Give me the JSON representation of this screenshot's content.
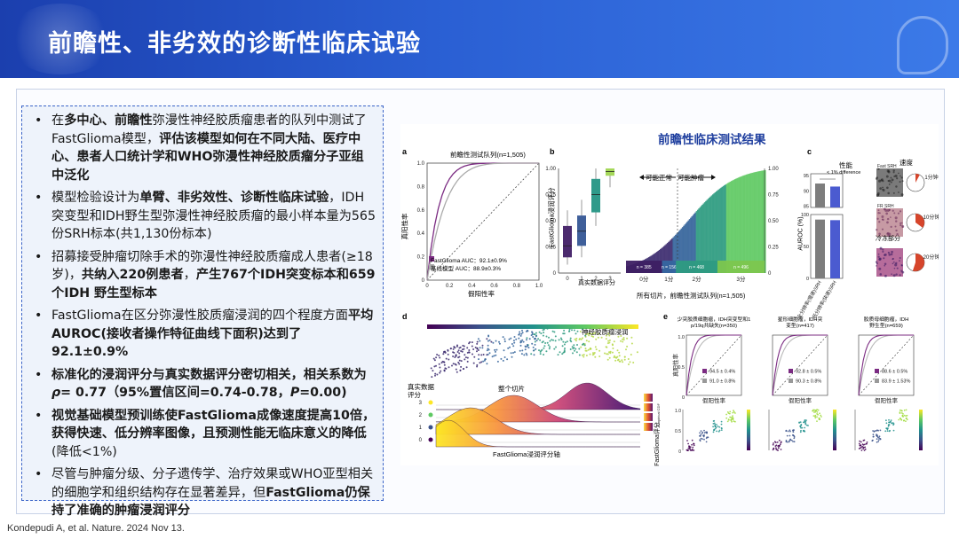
{
  "slide": {
    "title": "前瞻性、非劣效的诊断性临床试验",
    "citation": "Kondepudi A, et al. Nature. 2024 Nov 13."
  },
  "bullets": [
    [
      {
        "t": "在"
      },
      {
        "t": "多中心、前瞻性",
        "b": true
      },
      {
        "t": "弥漫性神经胶质瘤患者的队列中测试了FastGlioma模型，"
      },
      {
        "t": "评估该模型如何在不同大陆、医疗中心、患者人口统计学和WHO弥漫性神经胶质瘤分子亚组中泛化",
        "b": true
      }
    ],
    [
      {
        "t": "模型检验设计为"
      },
      {
        "t": "单臂、非劣效性、诊断性临床试验",
        "b": true
      },
      {
        "t": "，IDH突变型和IDH野生型弥漫性神经胶质瘤的最小样本量为565份SRH标本(共1,130份标本)"
      }
    ],
    [
      {
        "t": "招募接受肿瘤切除手术的弥漫性神经胶质瘤成人患者(≥18岁)，"
      },
      {
        "t": "共纳入220例患者",
        "b": true
      },
      {
        "t": "，"
      },
      {
        "t": "产生767个IDH突变标本和659个IDH 野生型标本",
        "b": true
      }
    ],
    [
      {
        "t": "FastGlioma在区分弥漫性胶质瘤浸润的四个程度方面"
      },
      {
        "t": "平均AUROC(接收者操作特征曲线下面积)达到了92.1±0.9%",
        "b": true
      }
    ],
    [
      {
        "t": "标准化的浸润评分与真实数据评分密切相关，相关系数为",
        "b": true
      },
      {
        "t": "ρ",
        "b": true,
        "i": true
      },
      {
        "t": "= 0.77（95%置信区间=0.74-0.78，",
        "b": true
      },
      {
        "t": "P",
        "b": true,
        "i": true
      },
      {
        "t": "=0.00)",
        "b": true
      }
    ],
    [
      {
        "t": "视觉基础模型预训练使FastGlioma成像速度提高10倍，获得快速、低分辨率图像，且预测性能无临床意义的降低",
        "b": true
      },
      {
        "t": "(降低<1%)"
      }
    ],
    [
      {
        "t": "尽管与肿瘤分级、分子遗传学、治疗效果或WHO亚型相关的细胞学和组织结构存在显著差异，但"
      },
      {
        "t": "FastGlioma仍保持了准确的肿瘤浸润评分",
        "b": true
      }
    ]
  ],
  "figure": {
    "main_title": "前瞻性临床测试结果",
    "panel_labels": {
      "a": "a",
      "b": "b",
      "c": "c",
      "d": "d",
      "e": "e"
    },
    "a": {
      "title": "前瞻性测试队列(n=1,505)",
      "ylabel": "真阳性率",
      "xlabel": "假阳性率",
      "legend1": "FastGlioma AUC：92.1±0.9%",
      "legend2": "基线模型 AUC：88.9±0.3%",
      "xticks": [
        "0",
        "0.2",
        "0.4",
        "0.6",
        "0.8",
        "1.0"
      ],
      "yticks": [
        "0",
        "0.2",
        "0.4",
        "0.6",
        "0.8",
        "1.0"
      ],
      "fast_color": "#7b2b82",
      "base_color": "#aaaaaa"
    },
    "b": {
      "ylabel": "FastGlioma浸润评分",
      "box_xlabel": "真实数据评分",
      "box_xticks": [
        "0",
        "1",
        "2",
        "3"
      ],
      "yticks": [
        "0",
        "0.25",
        "0.50",
        "0.75",
        "1.00"
      ],
      "arrow_left": "可能正常",
      "arrow_right": "可能肿瘤",
      "xlabel": "所有切片，前瞻性测试队列(n=1,505)",
      "band_ticks": [
        "0分",
        "1分",
        "2分",
        "3分"
      ],
      "band_counts": [
        "n = 385",
        "n = 156",
        "n = 468",
        "n = 496"
      ],
      "right_yticks": [
        "0",
        "0.25",
        "0.50",
        "0.75",
        "1.00"
      ]
    },
    "c": {
      "perf_title": "性能",
      "diff_label": "< 1% difference",
      "ylabel": "AUROC (%)",
      "yticks_top": [
        "95",
        "90",
        "85"
      ],
      "yticks_bottom": [
        "0",
        "50",
        "100"
      ],
      "bar_labels": [
        "全分辨率(慢速)SRH",
        "低分辨率(快速)SRH"
      ],
      "bar_values": [
        92.1,
        91.2
      ],
      "speed_title": "速度",
      "speed_rows": [
        {
          "label": "Fast SRH",
          "time": "1分钟"
        },
        {
          "label": "FR SRH",
          "time": "10分钟"
        },
        {
          "label": "冷冻部分",
          "time": "20分钟"
        }
      ]
    },
    "d": {
      "colorbar_label": "神经胶质瘤浸润",
      "ground_label": "真实数据评分",
      "all_label": "整个切片",
      "score_levels": [
        "3",
        "2",
        "1",
        "0"
      ],
      "xlabel": "FastGlioma浸润评分轴",
      "cdf_label": "Empirical CDF"
    },
    "e": {
      "panels": [
        {
          "title": "少突胶质细胞瘤，IDH突变型和1p/19q共缺失(n=350)",
          "fast": "94.5 ± 0.4%",
          "base": "91.0 ± 0.8%"
        },
        {
          "title": "星形细胞瘤，IDH突变型(n=417)",
          "fast": "92.8 ± 0.5%",
          "base": "90.3 ± 0.8%"
        },
        {
          "title": "胶质母细胞瘤，IDH野生型(n=659)",
          "fast": "88.6 ± 0.5%",
          "base": "83.9 ± 1.53%"
        }
      ],
      "roc_ylabel": "真阳性率",
      "roc_xlabel": "假阳性率",
      "scatter_ylabel": "FastGlioma评分",
      "yticks": [
        "1.0",
        "0.5",
        "0"
      ],
      "scatter_yticks": [
        "1.0",
        "0.5",
        "0"
      ]
    }
  }
}
